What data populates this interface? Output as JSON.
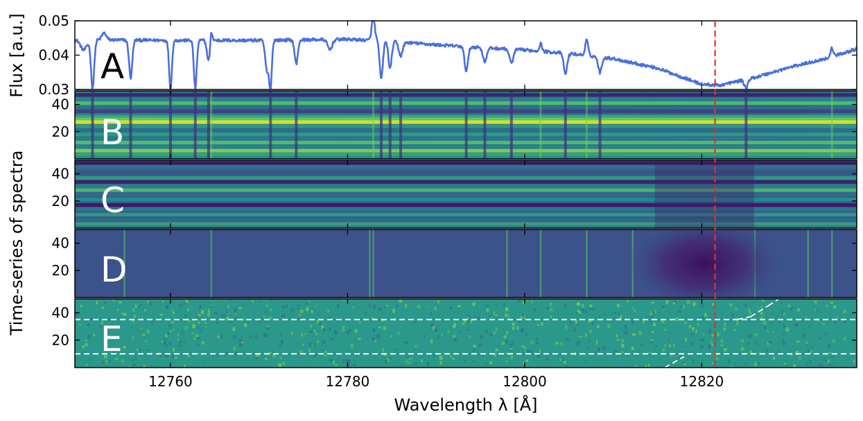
{
  "chart_data": {
    "type": "line",
    "xlabel": "Wavelength λ [Å]",
    "xlim": [
      12749.2,
      12837.5
    ],
    "x_ticks": [
      "12760",
      "12780",
      "12800",
      "12820"
    ],
    "x_tick_values": [
      12760,
      12780,
      12800,
      12820
    ],
    "marker_wavelength": 12821.5,
    "marker_color": "#e03030",
    "line_color": "#4a6fdc",
    "shared_ylabel": "Time-series of spectra",
    "panel_A": {
      "letter": "A",
      "ylabel": "Flux [a.u.]",
      "ylim": [
        0.03,
        0.05
      ],
      "y_ticks": [
        "0.03",
        "0.04",
        "0.05"
      ],
      "y_tick_values": [
        0.03,
        0.04,
        0.05
      ],
      "continuum": [
        [
          12749.2,
          0.0445
        ],
        [
          12760,
          0.0443
        ],
        [
          12770,
          0.0443
        ],
        [
          12780,
          0.0446
        ],
        [
          12785,
          0.044
        ],
        [
          12790,
          0.043
        ],
        [
          12800,
          0.0415
        ],
        [
          12805,
          0.0405
        ],
        [
          12810,
          0.039
        ],
        [
          12815,
          0.0362
        ],
        [
          12820,
          0.0315
        ],
        [
          12822,
          0.0312
        ],
        [
          12826,
          0.0335
        ],
        [
          12830,
          0.0365
        ],
        [
          12834,
          0.039
        ],
        [
          12837.5,
          0.0418
        ]
      ],
      "features": [
        {
          "center": 12750.2,
          "depth": 0.003,
          "width": 0.35
        },
        {
          "center": 12751.2,
          "depth": 0.014,
          "width": 0.18
        },
        {
          "center": 12752.5,
          "depth": -0.002,
          "width": 0.25
        },
        {
          "center": 12755.5,
          "depth": 0.011,
          "width": 0.18
        },
        {
          "center": 12760.0,
          "depth": 0.014,
          "width": 0.16
        },
        {
          "center": 12762.8,
          "depth": 0.014,
          "width": 0.16
        },
        {
          "center": 12764.3,
          "depth": 0.006,
          "width": 0.18
        },
        {
          "center": 12764.6,
          "depth": -0.0035,
          "width": 0.12
        },
        {
          "center": 12770.9,
          "depth": 0.009,
          "width": 0.2
        },
        {
          "center": 12771.3,
          "depth": 0.013,
          "width": 0.15
        },
        {
          "center": 12774.2,
          "depth": 0.007,
          "width": 0.18
        },
        {
          "center": 12778.0,
          "depth": 0.003,
          "width": 0.25
        },
        {
          "center": 12782.9,
          "depth": -0.0065,
          "width": 0.18
        },
        {
          "center": 12783.8,
          "depth": 0.011,
          "width": 0.18
        },
        {
          "center": 12784.8,
          "depth": 0.008,
          "width": 0.18
        },
        {
          "center": 12786.0,
          "depth": 0.004,
          "width": 0.22
        },
        {
          "center": 12793.4,
          "depth": 0.007,
          "width": 0.2
        },
        {
          "center": 12795.5,
          "depth": 0.004,
          "width": 0.22
        },
        {
          "center": 12798.5,
          "depth": 0.004,
          "width": 0.22
        },
        {
          "center": 12801.8,
          "depth": -0.0022,
          "width": 0.15
        },
        {
          "center": 12804.6,
          "depth": 0.006,
          "width": 0.2
        },
        {
          "center": 12807.0,
          "depth": -0.0045,
          "width": 0.16
        },
        {
          "center": 12808.5,
          "depth": 0.0045,
          "width": 0.2
        },
        {
          "center": 12825.0,
          "depth": 0.0025,
          "width": 0.2
        },
        {
          "center": 12834.7,
          "depth": -0.0025,
          "width": 0.15
        }
      ],
      "absorption_lines": [
        12751.2,
        12755.5,
        12760.0,
        12762.8,
        12764.3,
        12771.3,
        12774.2,
        12783.8,
        12784.8,
        12786.0,
        12793.4,
        12795.5,
        12798.5,
        12804.6,
        12808.5,
        12825.0
      ],
      "emission_lines": [
        12764.6,
        12782.9,
        12801.8,
        12807.0,
        12834.7
      ]
    },
    "panel_B": {
      "letter": "B",
      "ylim": [
        0,
        50
      ],
      "y_ticks": [
        "20",
        "40"
      ],
      "y_tick_values": [
        20,
        40
      ],
      "row_bands": [
        {
          "row": 47,
          "level": 0.1
        },
        {
          "row": 44,
          "level": 0.45
        },
        {
          "row": 41,
          "level": 0.7
        },
        {
          "row": 37,
          "level": 0.35
        },
        {
          "row": 35,
          "level": 0.2
        },
        {
          "row": 31,
          "level": 0.6
        },
        {
          "row": 29,
          "level": 0.75
        },
        {
          "row": 27,
          "level": 0.95
        },
        {
          "row": 24,
          "level": 0.55
        },
        {
          "row": 21,
          "level": 0.35
        },
        {
          "row": 18,
          "level": 0.55
        },
        {
          "row": 15,
          "level": 0.4
        },
        {
          "row": 12,
          "level": 0.7
        },
        {
          "row": 9,
          "level": 0.45
        },
        {
          "row": 6,
          "level": 0.8
        },
        {
          "row": 3,
          "level": 0.6
        },
        {
          "row": 1,
          "level": 0.5
        }
      ]
    },
    "panel_C": {
      "letter": "C",
      "ylim": [
        0,
        50
      ],
      "y_ticks": [
        "20",
        "40"
      ],
      "y_tick_values": [
        20,
        40
      ],
      "row_bands": [
        {
          "row": 48,
          "level": 0.05
        },
        {
          "row": 45,
          "level": 0.4
        },
        {
          "row": 41,
          "level": 0.25
        },
        {
          "row": 37,
          "level": 0.55
        },
        {
          "row": 34,
          "level": 0.08
        },
        {
          "row": 31,
          "level": 0.45
        },
        {
          "row": 28,
          "level": 0.7
        },
        {
          "row": 25,
          "level": 0.35
        },
        {
          "row": 21,
          "level": 0.5
        },
        {
          "row": 17,
          "level": 0.05
        },
        {
          "row": 14,
          "level": 0.4
        },
        {
          "row": 10,
          "level": 0.55
        },
        {
          "row": 6,
          "level": 0.35
        },
        {
          "row": 3,
          "level": 0.6
        },
        {
          "row": 1,
          "level": 0.45
        }
      ]
    },
    "panel_D": {
      "letter": "D",
      "ylim": [
        0,
        50
      ],
      "y_ticks": [
        "20",
        "40"
      ],
      "y_tick_values": [
        20,
        40
      ],
      "dark_region_center": 12820.3,
      "dark_region_width": 3.5
    },
    "panel_E": {
      "letter": "E",
      "ylim": [
        0,
        50
      ],
      "y_ticks": [
        "20",
        "40"
      ],
      "y_tick_values": [
        20,
        40
      ],
      "dashed_rows": [
        35,
        10
      ],
      "diagonal_segments": [
        {
          "x": [
            12815.8,
            12818.0
          ],
          "y": [
            0,
            8
          ]
        },
        {
          "x": [
            12824.0,
            12825.5
          ],
          "y": [
            35,
            37
          ]
        },
        {
          "x": [
            12825.5,
            12827.5
          ],
          "y": [
            37,
            45
          ]
        },
        {
          "x": [
            12827.5,
            12828.7
          ],
          "y": [
            45,
            50
          ]
        }
      ]
    }
  }
}
